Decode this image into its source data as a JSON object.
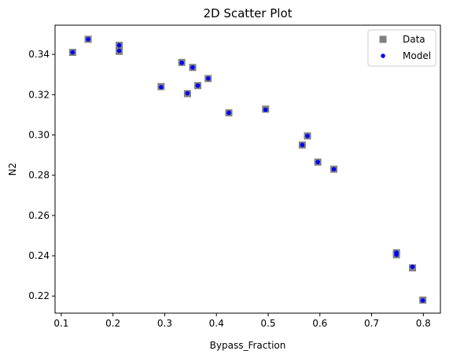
{
  "chart_data": {
    "type": "scatter",
    "title": "2D Scatter Plot",
    "xlabel": "Bypass_Fraction",
    "ylabel": "N2",
    "xlim": [
      0.088,
      0.833
    ],
    "ylim": [
      0.2115,
      0.3545
    ],
    "xticks": [
      0.1,
      0.2,
      0.3,
      0.4,
      0.5,
      0.6,
      0.7,
      0.8
    ],
    "yticks": [
      0.22,
      0.24,
      0.26,
      0.28,
      0.3,
      0.32,
      0.34
    ],
    "xtick_labels": [
      "0.1",
      "0.2",
      "0.3",
      "0.4",
      "0.5",
      "0.6",
      "0.7",
      "0.8"
    ],
    "ytick_labels": [
      "0.22",
      "0.24",
      "0.26",
      "0.28",
      "0.30",
      "0.32",
      "0.34"
    ],
    "grid": false,
    "legend_position": "top-right",
    "series": [
      {
        "name": "Data",
        "marker": "square",
        "color": "#808080",
        "x": [
          0.122,
          0.152,
          0.212,
          0.212,
          0.293,
          0.333,
          0.344,
          0.354,
          0.364,
          0.384,
          0.424,
          0.495,
          0.566,
          0.576,
          0.596,
          0.627,
          0.748,
          0.748,
          0.779,
          0.799
        ],
        "y": [
          0.341,
          0.3475,
          0.3445,
          0.3415,
          0.324,
          0.336,
          0.3205,
          0.3335,
          0.3245,
          0.328,
          0.311,
          0.3128,
          0.295,
          0.2995,
          0.2865,
          0.283,
          0.2415,
          0.2405,
          0.234,
          0.218
        ]
      },
      {
        "name": "Model",
        "marker": "circle",
        "color": "#0000ff",
        "x": [
          0.122,
          0.152,
          0.212,
          0.212,
          0.293,
          0.333,
          0.344,
          0.354,
          0.364,
          0.384,
          0.424,
          0.495,
          0.566,
          0.576,
          0.596,
          0.627,
          0.748,
          0.748,
          0.779,
          0.799
        ],
        "y": [
          0.341,
          0.3475,
          0.3445,
          0.3418,
          0.3237,
          0.3358,
          0.3207,
          0.3335,
          0.3245,
          0.328,
          0.311,
          0.3125,
          0.295,
          0.2995,
          0.2865,
          0.283,
          0.2415,
          0.2405,
          0.2345,
          0.2178
        ]
      }
    ]
  }
}
